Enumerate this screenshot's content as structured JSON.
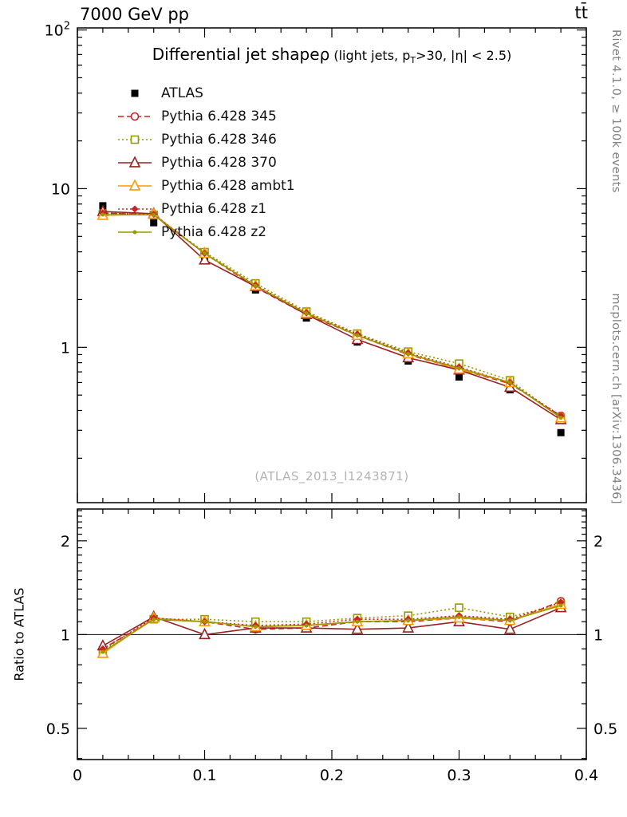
{
  "header": {
    "left": "7000 GeV pp",
    "right": "tt̄"
  },
  "side_notes": {
    "top": "Rivet 4.1.0, ≥ 100k events",
    "bottom": "mcplots.cern.ch [arXiv:1306.3436]"
  },
  "title": {
    "main": "Differential jet shape",
    "rho": "ρ",
    "detail_pre": " (light jets, p",
    "detail_sub": "T",
    "detail_post": ">30, |η| < 2.5)"
  },
  "watermark": "(ATLAS_2013_I1243871)",
  "ratio_axis_label": "Ratio to ATLAS",
  "colors": {
    "black": "#000000",
    "red": "#cc2222",
    "olive": "#999900",
    "dark_red": "#992222",
    "orange": "#ff9900",
    "gray_text": "#808080",
    "watermark_gray": "#b3b3b3"
  },
  "chart_data": {
    "type": "line",
    "yscale": "log",
    "xlim": [
      0,
      0.4
    ],
    "main_ylim": [
      0.105,
      103
    ],
    "ratio_ylim": [
      0.397,
      2.53
    ],
    "x_major_ticks": [
      0,
      0.1,
      0.2,
      0.3,
      0.4
    ],
    "x_tick_labels": [
      "0",
      "0.1",
      "0.2",
      "0.3",
      "0.4"
    ],
    "main_y_major_ticks": [
      1,
      10,
      100
    ],
    "main_y_tick_labels": [
      "1",
      "10",
      "10^2"
    ],
    "ratio_y_major_ticks": [
      0.5,
      1,
      2
    ],
    "ratio_y_tick_labels": [
      "0.5",
      "1",
      "2"
    ],
    "x": [
      0.02,
      0.06,
      0.1,
      0.14,
      0.18,
      0.22,
      0.26,
      0.3,
      0.34,
      0.38
    ],
    "series": [
      {
        "label": "ATLAS",
        "color": "#000000",
        "line": "none",
        "marker": "square",
        "filled": true,
        "size": 9,
        "values": [
          7.8,
          6.1,
          3.55,
          2.3,
          1.53,
          1.08,
          0.82,
          0.65,
          0.54,
          0.29
        ],
        "ratio": null
      },
      {
        "label": "Pythia 6.428 345",
        "color": "#cc2222",
        "line": "dashed",
        "marker": "circle",
        "filled": false,
        "size": 9,
        "values": [
          7.02,
          6.83,
          3.91,
          2.39,
          1.61,
          1.19,
          0.9,
          0.73,
          0.59,
          0.37
        ],
        "ratio": [
          0.9,
          1.12,
          1.1,
          1.04,
          1.05,
          1.1,
          1.1,
          1.13,
          1.1,
          1.28
        ]
      },
      {
        "label": "Pythia 6.428 346",
        "color": "#999900",
        "line": "dotted",
        "marker": "square",
        "filled": false,
        "size": 9,
        "values": [
          6.94,
          6.83,
          3.98,
          2.53,
          1.68,
          1.22,
          0.94,
          0.79,
          0.62,
          0.36
        ],
        "ratio": [
          0.89,
          1.12,
          1.12,
          1.1,
          1.1,
          1.13,
          1.15,
          1.22,
          1.14,
          1.25
        ]
      },
      {
        "label": "Pythia 6.428 370",
        "color": "#992222",
        "line": "solid",
        "marker": "triangle",
        "filled": false,
        "size": 11,
        "values": [
          7.18,
          6.95,
          3.55,
          2.42,
          1.61,
          1.12,
          0.86,
          0.72,
          0.56,
          0.35
        ],
        "ratio": [
          0.92,
          1.14,
          1.0,
          1.05,
          1.05,
          1.04,
          1.05,
          1.1,
          1.04,
          1.22
        ]
      },
      {
        "label": "Pythia 6.428 ambt1",
        "color": "#ff9900",
        "line": "solid",
        "marker": "triangle",
        "filled": false,
        "size": 11,
        "values": [
          6.79,
          6.89,
          3.91,
          2.44,
          1.64,
          1.19,
          0.91,
          0.73,
          0.6,
          0.36
        ],
        "ratio": [
          0.87,
          1.13,
          1.1,
          1.06,
          1.07,
          1.1,
          1.11,
          1.13,
          1.11,
          1.25
        ]
      },
      {
        "label": "Pythia 6.428 z1",
        "color": "#cc2222",
        "line": "dotted",
        "marker": "diamond",
        "filled": true,
        "size": 7,
        "values": [
          7.02,
          6.89,
          3.91,
          2.46,
          1.65,
          1.21,
          0.92,
          0.75,
          0.6,
          0.37
        ],
        "ratio": [
          0.9,
          1.13,
          1.1,
          1.07,
          1.08,
          1.12,
          1.12,
          1.15,
          1.12,
          1.27
        ]
      },
      {
        "label": "Pythia 6.428 z2",
        "color": "#999900",
        "line": "solid",
        "marker": "dot",
        "filled": true,
        "size": 5,
        "values": [
          6.86,
          6.83,
          3.91,
          2.44,
          1.64,
          1.19,
          0.91,
          0.74,
          0.6,
          0.36
        ],
        "ratio": [
          0.88,
          1.12,
          1.1,
          1.06,
          1.07,
          1.1,
          1.11,
          1.14,
          1.11,
          1.24
        ]
      }
    ]
  }
}
